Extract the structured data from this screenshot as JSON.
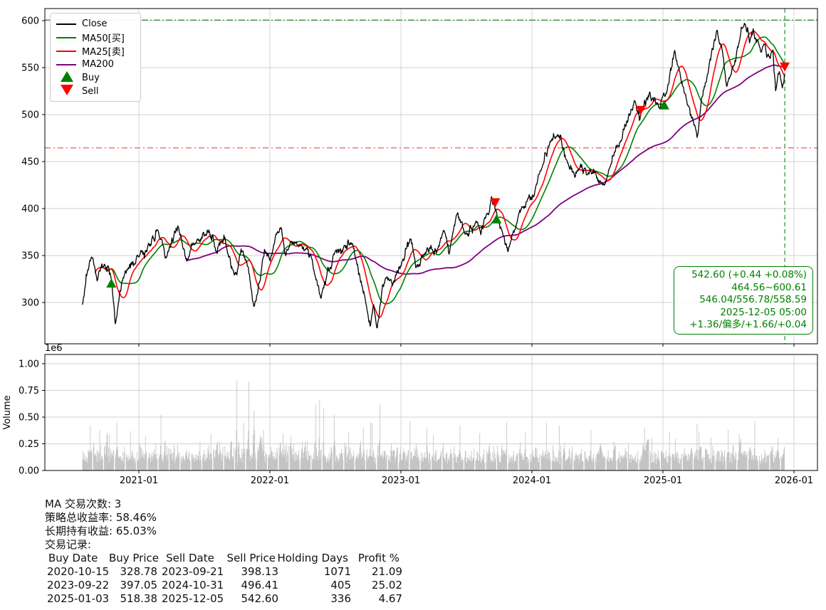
{
  "legend": {
    "items": [
      {
        "label": "Close",
        "color": "#000000"
      },
      {
        "label": "MA50[买]",
        "color": "#008000"
      },
      {
        "label": "MA25[卖]",
        "color": "#ff0000"
      },
      {
        "label": "MA200",
        "color": "#800080"
      }
    ],
    "buy_label": "Buy",
    "sell_label": "Sell",
    "buy_color": "#008000",
    "sell_color": "#ff0000"
  },
  "info_box": {
    "color": "#008000",
    "lines": [
      "542.60 (+0.44 +0.08%)",
      "464.56~600.61",
      "546.04/556.78/558.59",
      "2025-12-05 05:00",
      "+1.36/偏多/+1.66/+0.04"
    ]
  },
  "stats": {
    "line1": "MA 交易次数: 3",
    "line2": "策略总收益率: 58.46%",
    "line3": "长期持有收益: 65.03%",
    "line4": "交易记录:",
    "header": [
      "Buy Date",
      "Buy Price",
      "Sell Date",
      "Sell Price",
      "Holding Days",
      "Profit %"
    ],
    "trades": [
      {
        "buy_date": "2020-10-15",
        "buy_price": "328.78",
        "sell_date": "2023-09-21",
        "sell_price": "398.13",
        "days": "1071",
        "profit": "21.09"
      },
      {
        "buy_date": "2023-09-22",
        "buy_price": "397.05",
        "sell_date": "2024-10-31",
        "sell_price": "496.41",
        "days": "405",
        "profit": "25.02"
      },
      {
        "buy_date": "2025-01-03",
        "buy_price": "518.38",
        "sell_date": "2025-12-05",
        "sell_price": "542.60",
        "days": "336",
        "profit": "4.67"
      }
    ]
  },
  "chart_data": {
    "type": "line",
    "title": "",
    "xlabel": "",
    "ylabel_volume": "Volume",
    "volume_scale_label": "1e6",
    "x_ticks": [
      {
        "t": 2021.0,
        "label": "2021-01"
      },
      {
        "t": 2022.0,
        "label": "2022-01"
      },
      {
        "t": 2023.0,
        "label": "2023-01"
      },
      {
        "t": 2024.0,
        "label": "2024-01"
      },
      {
        "t": 2025.0,
        "label": "2025-01"
      },
      {
        "t": 2026.0,
        "label": "2026-01"
      }
    ],
    "price_ticks": [
      600,
      550,
      500,
      450,
      400,
      350,
      300
    ],
    "price_ylim": [
      256,
      613
    ],
    "xlim": [
      2020.28,
      2026.18
    ],
    "volume_ticks": [
      {
        "v": 1.0,
        "label": "1.00"
      },
      {
        "v": 0.75,
        "label": "0.75"
      },
      {
        "v": 0.5,
        "label": "0.50"
      },
      {
        "v": 0.25,
        "label": "0.25"
      },
      {
        "v": 0.0,
        "label": "0.00"
      }
    ],
    "grid": true,
    "legend_position": "upper-left",
    "colors": {
      "close": "#000000",
      "ma50": "#008000",
      "ma25": "#ff0000",
      "ma200": "#800080",
      "volume": "#c4c4c4",
      "grid": "#d0d0d0",
      "buy": "#008000",
      "sell": "#ff0000",
      "ref_high": "#3c9a3c",
      "ref_low": "#ff5555",
      "vline": "#3c9a3c"
    },
    "ref_lines": {
      "green_h": 600.61,
      "red_h": 464.56,
      "vline_t": 2025.93
    },
    "ma_windows": {
      "ma25": 25,
      "ma50": 50,
      "ma200": 200
    },
    "trades": {
      "buys": [
        [
          2020.79,
          328.78
        ],
        [
          2023.73,
          397.05
        ],
        [
          2025.01,
          518.38
        ]
      ],
      "sells": [
        [
          2023.72,
          398.13
        ],
        [
          2024.83,
          496.41
        ],
        [
          2025.93,
          542.6
        ]
      ]
    },
    "close_anchors": [
      [
        2020.57,
        299
      ],
      [
        2020.6,
        327
      ],
      [
        2020.64,
        351
      ],
      [
        2020.68,
        323
      ],
      [
        2020.72,
        337
      ],
      [
        2020.76,
        332
      ],
      [
        2020.79,
        328.78
      ],
      [
        2020.81,
        300
      ],
      [
        2020.82,
        276
      ],
      [
        2020.85,
        305
      ],
      [
        2020.88,
        328
      ],
      [
        2020.92,
        336
      ],
      [
        2020.96,
        342
      ],
      [
        2021.0,
        346
      ],
      [
        2021.05,
        353
      ],
      [
        2021.1,
        366
      ],
      [
        2021.15,
        376
      ],
      [
        2021.2,
        348
      ],
      [
        2021.25,
        362
      ],
      [
        2021.3,
        381
      ],
      [
        2021.36,
        345
      ],
      [
        2021.41,
        358
      ],
      [
        2021.45,
        364
      ],
      [
        2021.5,
        372
      ],
      [
        2021.54,
        379
      ],
      [
        2021.59,
        353
      ],
      [
        2021.63,
        360
      ],
      [
        2021.66,
        364
      ],
      [
        2021.7,
        341
      ],
      [
        2021.75,
        326
      ],
      [
        2021.78,
        357
      ],
      [
        2021.83,
        337
      ],
      [
        2021.88,
        294
      ],
      [
        2021.92,
        323
      ],
      [
        2021.96,
        350
      ],
      [
        2022.0,
        345
      ],
      [
        2022.04,
        368
      ],
      [
        2022.08,
        383
      ],
      [
        2022.12,
        357
      ],
      [
        2022.17,
        362
      ],
      [
        2022.22,
        368
      ],
      [
        2022.26,
        362
      ],
      [
        2022.3,
        357
      ],
      [
        2022.34,
        330
      ],
      [
        2022.39,
        302
      ],
      [
        2022.44,
        330
      ],
      [
        2022.49,
        347
      ],
      [
        2022.53,
        352
      ],
      [
        2022.57,
        356
      ],
      [
        2022.62,
        362
      ],
      [
        2022.66,
        345
      ],
      [
        2022.7,
        319
      ],
      [
        2022.74,
        295
      ],
      [
        2022.77,
        272
      ],
      [
        2022.79,
        296
      ],
      [
        2022.82,
        277
      ],
      [
        2022.86,
        319
      ],
      [
        2022.9,
        327
      ],
      [
        2022.94,
        322
      ],
      [
        2022.97,
        330
      ],
      [
        2023.0,
        338
      ],
      [
        2023.04,
        356
      ],
      [
        2023.07,
        370
      ],
      [
        2023.12,
        340
      ],
      [
        2023.16,
        347
      ],
      [
        2023.21,
        353
      ],
      [
        2023.27,
        357
      ],
      [
        2023.34,
        377
      ],
      [
        2023.37,
        357
      ],
      [
        2023.43,
        391
      ],
      [
        2023.47,
        378
      ],
      [
        2023.51,
        372
      ],
      [
        2023.57,
        387
      ],
      [
        2023.61,
        377
      ],
      [
        2023.65,
        390
      ],
      [
        2023.69,
        408
      ],
      [
        2023.72,
        398.13
      ],
      [
        2023.76,
        378
      ],
      [
        2023.82,
        353
      ],
      [
        2023.86,
        370
      ],
      [
        2023.89,
        387
      ],
      [
        2023.93,
        400
      ],
      [
        2023.97,
        413
      ],
      [
        2024.0,
        412
      ],
      [
        2024.06,
        438
      ],
      [
        2024.12,
        462
      ],
      [
        2024.17,
        478
      ],
      [
        2024.22,
        483
      ],
      [
        2024.27,
        450
      ],
      [
        2024.33,
        436
      ],
      [
        2024.37,
        447
      ],
      [
        2024.42,
        438
      ],
      [
        2024.47,
        445
      ],
      [
        2024.52,
        432
      ],
      [
        2024.56,
        426
      ],
      [
        2024.61,
        452
      ],
      [
        2024.66,
        470
      ],
      [
        2024.71,
        490
      ],
      [
        2024.78,
        512
      ],
      [
        2024.82,
        496.41
      ],
      [
        2024.86,
        510
      ],
      [
        2024.9,
        523
      ],
      [
        2024.94,
        512
      ],
      [
        2024.97,
        508
      ],
      [
        2025.01,
        518.38
      ],
      [
        2025.05,
        540
      ],
      [
        2025.09,
        567
      ],
      [
        2025.13,
        545
      ],
      [
        2025.17,
        520
      ],
      [
        2025.21,
        500
      ],
      [
        2025.26,
        476
      ],
      [
        2025.3,
        515
      ],
      [
        2025.34,
        545
      ],
      [
        2025.38,
        570
      ],
      [
        2025.41,
        587
      ],
      [
        2025.45,
        575
      ],
      [
        2025.49,
        525
      ],
      [
        2025.52,
        540
      ],
      [
        2025.56,
        562
      ],
      [
        2025.6,
        585
      ],
      [
        2025.63,
        599
      ],
      [
        2025.66,
        581
      ],
      [
        2025.69,
        590
      ],
      [
        2025.72,
        577
      ],
      [
        2025.75,
        562
      ],
      [
        2025.78,
        573
      ],
      [
        2025.81,
        556
      ],
      [
        2025.84,
        565
      ],
      [
        2025.86,
        527
      ],
      [
        2025.89,
        549
      ],
      [
        2025.91,
        532
      ],
      [
        2025.93,
        542.6
      ]
    ],
    "volume_spikes": [
      [
        2020.63,
        0.42
      ],
      [
        2020.7,
        0.38
      ],
      [
        2020.76,
        0.35
      ],
      [
        2020.83,
        0.45
      ],
      [
        2021.05,
        0.32
      ],
      [
        2021.17,
        0.52
      ],
      [
        2021.4,
        0.72
      ],
      [
        2021.55,
        0.34
      ],
      [
        2021.75,
        0.84
      ],
      [
        2021.8,
        0.45
      ],
      [
        2021.84,
        0.83
      ],
      [
        2021.88,
        0.56
      ],
      [
        2021.95,
        0.38
      ],
      [
        2022.1,
        0.35
      ],
      [
        2022.35,
        0.62
      ],
      [
        2022.38,
        0.66
      ],
      [
        2022.41,
        0.58
      ],
      [
        2022.49,
        0.52
      ],
      [
        2022.6,
        0.36
      ],
      [
        2022.77,
        0.45
      ],
      [
        2022.84,
        0.62
      ],
      [
        2022.98,
        0.48
      ],
      [
        2023.07,
        0.46
      ],
      [
        2023.25,
        0.33
      ],
      [
        2023.45,
        0.42
      ],
      [
        2023.6,
        0.35
      ],
      [
        2023.81,
        0.45
      ],
      [
        2023.95,
        0.36
      ],
      [
        2024.21,
        0.42
      ],
      [
        2024.45,
        0.38
      ],
      [
        2024.65,
        0.34
      ],
      [
        2024.86,
        0.4
      ],
      [
        2024.9,
        0.42
      ],
      [
        2025.05,
        0.36
      ],
      [
        2025.26,
        0.44
      ],
      [
        2025.5,
        0.38
      ],
      [
        2025.58,
        0.34
      ],
      [
        2025.7,
        0.46
      ],
      [
        2025.88,
        0.3
      ]
    ]
  }
}
